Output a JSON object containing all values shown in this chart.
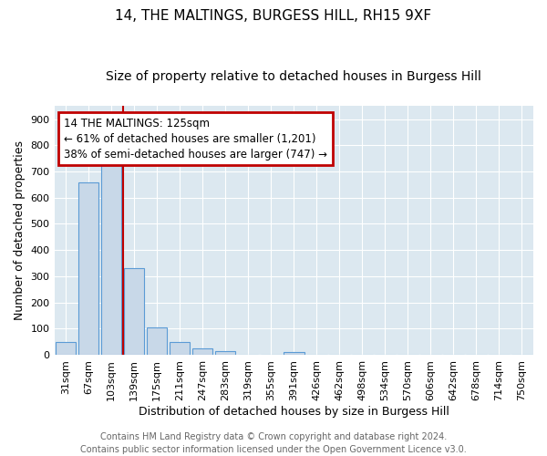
{
  "title": "14, THE MALTINGS, BURGESS HILL, RH15 9XF",
  "subtitle": "Size of property relative to detached houses in Burgess Hill",
  "xlabel": "Distribution of detached houses by size in Burgess Hill",
  "ylabel": "Number of detached properties",
  "bar_labels": [
    "31sqm",
    "67sqm",
    "103sqm",
    "139sqm",
    "175sqm",
    "211sqm",
    "247sqm",
    "283sqm",
    "319sqm",
    "355sqm",
    "391sqm",
    "426sqm",
    "462sqm",
    "498sqm",
    "534sqm",
    "570sqm",
    "606sqm",
    "642sqm",
    "678sqm",
    "714sqm",
    "750sqm"
  ],
  "bar_values": [
    50,
    660,
    745,
    330,
    105,
    50,
    25,
    15,
    0,
    0,
    10,
    0,
    0,
    0,
    0,
    0,
    0,
    0,
    0,
    0,
    0
  ],
  "bar_color": "#c8d8e8",
  "bar_edge_color": "#5b9bd5",
  "highlight_line_color": "#c00000",
  "annotation_line1": "14 THE MALTINGS: 125sqm",
  "annotation_line2": "← 61% of detached houses are smaller (1,201)",
  "annotation_line3": "38% of semi-detached houses are larger (747) →",
  "annotation_box_color": "#c00000",
  "ylim": [
    0,
    950
  ],
  "yticks": [
    0,
    100,
    200,
    300,
    400,
    500,
    600,
    700,
    800,
    900
  ],
  "background_color": "#dce8f0",
  "grid_color": "#ffffff",
  "footer_text": "Contains HM Land Registry data © Crown copyright and database right 2024.\nContains public sector information licensed under the Open Government Licence v3.0.",
  "title_fontsize": 11,
  "subtitle_fontsize": 10,
  "axis_label_fontsize": 9,
  "tick_fontsize": 8,
  "annotation_fontsize": 8.5,
  "footer_fontsize": 7
}
